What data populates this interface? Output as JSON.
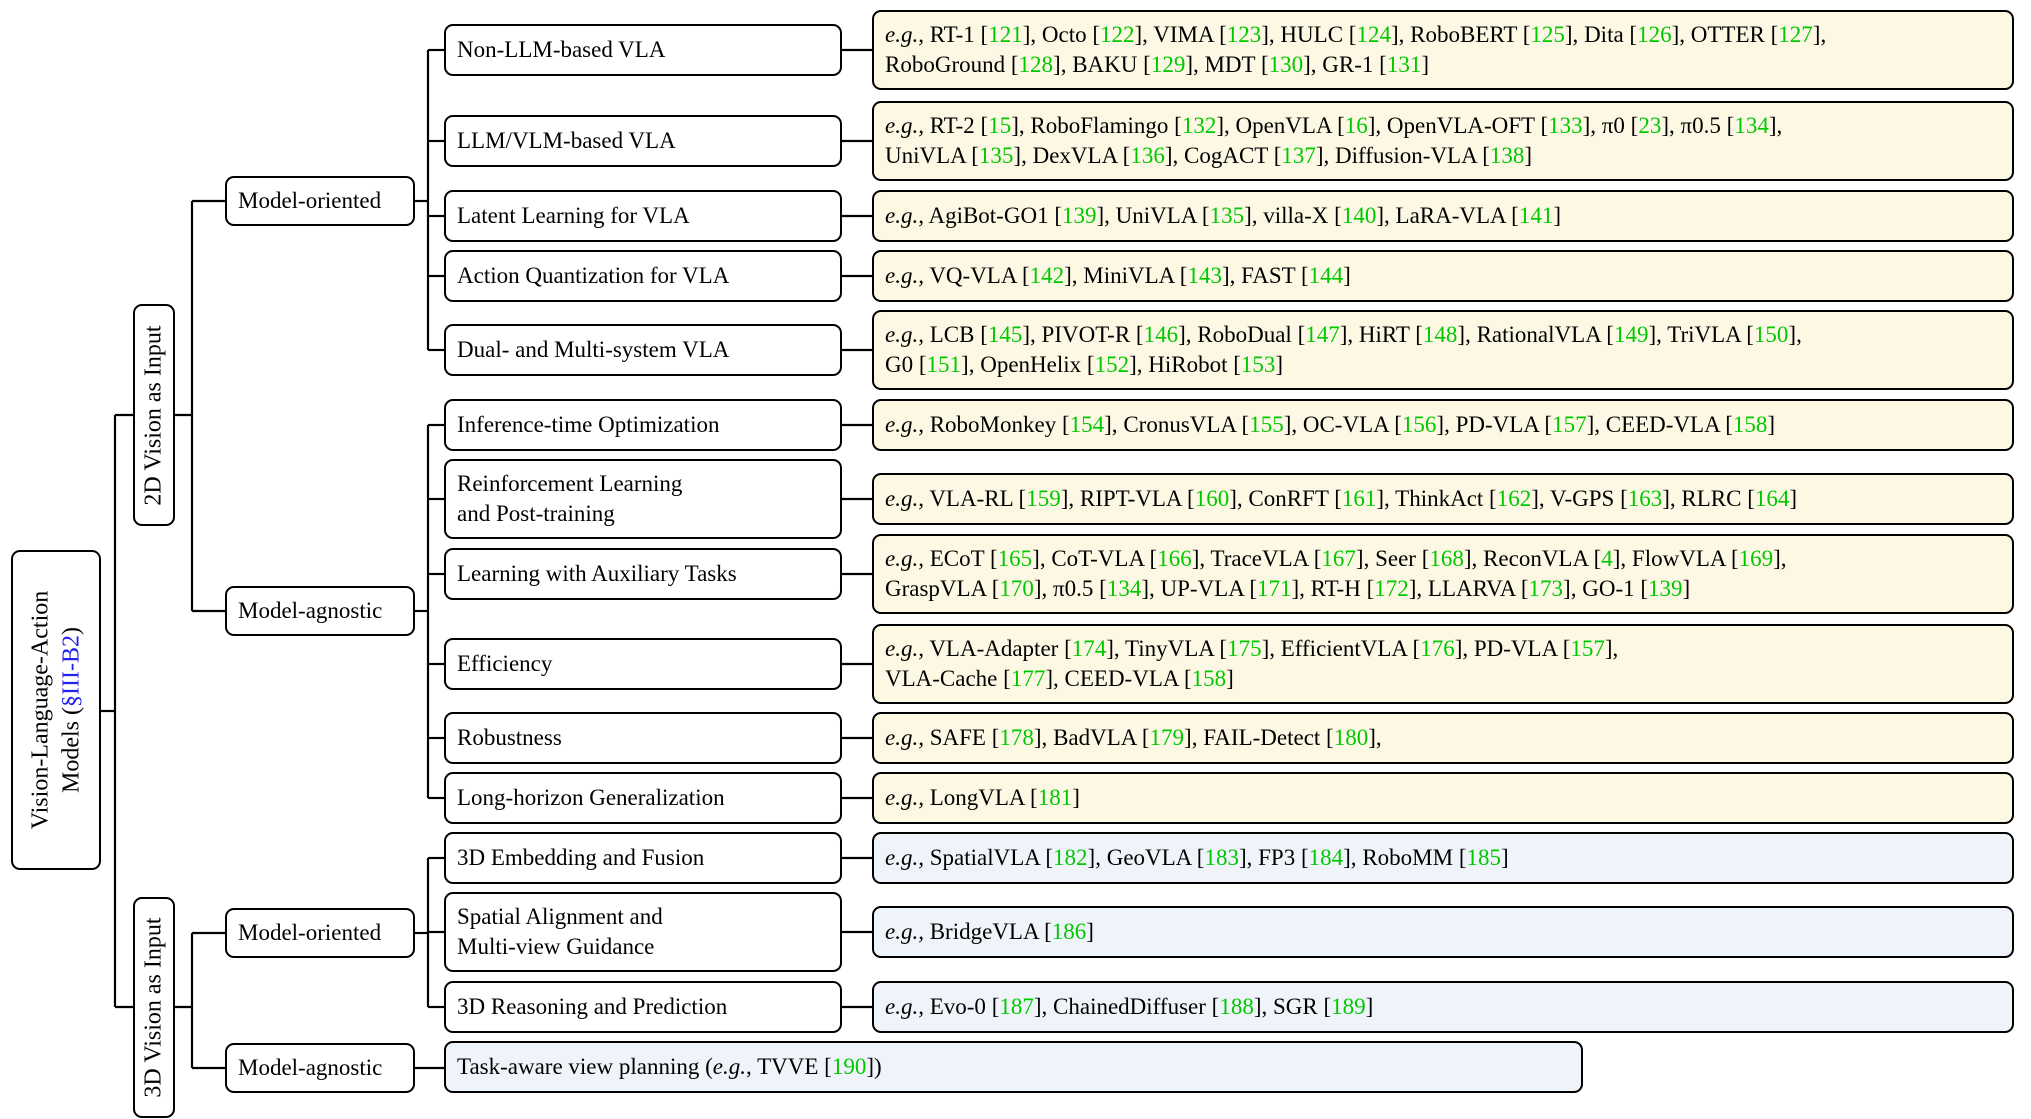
{
  "root": {
    "line1": "Vision-Language-Action",
    "line2_prefix": "Models (",
    "section_ref": "§III-B2",
    "line2_suffix": ")"
  },
  "branches": [
    {
      "label": "2D Vision as Input"
    },
    {
      "label": "3D Vision as Input"
    }
  ],
  "groups": [
    {
      "label": "Model-oriented"
    },
    {
      "label": "Model-agnostic"
    },
    {
      "label": "Model-oriented"
    },
    {
      "label": "Model-agnostic"
    }
  ],
  "eg_prefix": "e.g.,",
  "categories": [
    {
      "label": "Non-LLM-based VLA",
      "examples": [
        {
          "name": "RT-1",
          "cite": "121"
        },
        {
          "name": "Octo",
          "cite": "122"
        },
        {
          "name": "VIMA",
          "cite": "123"
        },
        {
          "name": "HULC",
          "cite": "124"
        },
        {
          "name": "RoboBERT",
          "cite": "125"
        },
        {
          "name": "Dita",
          "cite": "126"
        },
        {
          "name": "OTTER",
          "cite": "127"
        },
        {
          "name": "RoboGround",
          "cite": "128"
        },
        {
          "name": "BAKU",
          "cite": "129"
        },
        {
          "name": "MDT",
          "cite": "130"
        },
        {
          "name": "GR-1",
          "cite": "131"
        }
      ]
    },
    {
      "label": "LLM/VLM-based VLA",
      "examples": [
        {
          "name": "RT-2",
          "cite": "15"
        },
        {
          "name": "RoboFlamingo",
          "cite": "132"
        },
        {
          "name": "OpenVLA",
          "cite": "16"
        },
        {
          "name": "OpenVLA-OFT",
          "cite": "133"
        },
        {
          "name": "π0",
          "cite": "23"
        },
        {
          "name": "π0.5",
          "cite": "134"
        },
        {
          "name": "UniVLA",
          "cite": "135"
        },
        {
          "name": "DexVLA",
          "cite": "136"
        },
        {
          "name": "CogACT",
          "cite": "137"
        },
        {
          "name": "Diffusion-VLA",
          "cite": "138"
        }
      ]
    },
    {
      "label": "Latent Learning for VLA",
      "examples": [
        {
          "name": "AgiBot-GO1",
          "cite": "139"
        },
        {
          "name": "UniVLA",
          "cite": "135"
        },
        {
          "name": "villa-X",
          "cite": "140"
        },
        {
          "name": "LaRA-VLA",
          "cite": "141"
        }
      ]
    },
    {
      "label": "Action Quantization for VLA",
      "examples": [
        {
          "name": "VQ-VLA",
          "cite": "142"
        },
        {
          "name": "MiniVLA",
          "cite": "143"
        },
        {
          "name": "FAST",
          "cite": "144"
        }
      ]
    },
    {
      "label": "Dual- and Multi-system VLA",
      "examples": [
        {
          "name": "LCB",
          "cite": "145"
        },
        {
          "name": "PIVOT-R",
          "cite": "146"
        },
        {
          "name": "RoboDual",
          "cite": "147"
        },
        {
          "name": "HiRT",
          "cite": "148"
        },
        {
          "name": "RationalVLA",
          "cite": "149"
        },
        {
          "name": "TriVLA",
          "cite": "150"
        },
        {
          "name": "G0",
          "cite": "151"
        },
        {
          "name": "OpenHelix",
          "cite": "152"
        },
        {
          "name": "HiRobot",
          "cite": "153"
        }
      ]
    },
    {
      "label": "Inference-time Optimization",
      "examples": [
        {
          "name": "RoboMonkey",
          "cite": "154"
        },
        {
          "name": "CronusVLA",
          "cite": "155"
        },
        {
          "name": "OC-VLA",
          "cite": "156"
        },
        {
          "name": "PD-VLA",
          "cite": "157"
        },
        {
          "name": "CEED-VLA",
          "cite": "158"
        }
      ]
    },
    {
      "label": "Reinforcement Learning and Post-training",
      "line1": "Reinforcement Learning",
      "line2": "and Post-training",
      "examples": [
        {
          "name": "VLA-RL",
          "cite": "159"
        },
        {
          "name": "RIPT-VLA",
          "cite": "160"
        },
        {
          "name": "ConRFT",
          "cite": "161"
        },
        {
          "name": "ThinkAct",
          "cite": "162"
        },
        {
          "name": "V-GPS",
          "cite": "163"
        },
        {
          "name": "RLRC",
          "cite": "164"
        }
      ]
    },
    {
      "label": "Learning with Auxiliary Tasks",
      "examples": [
        {
          "name": "ECoT",
          "cite": "165"
        },
        {
          "name": "CoT-VLA",
          "cite": "166"
        },
        {
          "name": "TraceVLA",
          "cite": "167"
        },
        {
          "name": "Seer",
          "cite": "168"
        },
        {
          "name": "ReconVLA",
          "cite": "4"
        },
        {
          "name": "FlowVLA",
          "cite": "169"
        },
        {
          "name": "GraspVLA",
          "cite": "170"
        },
        {
          "name": "π0.5",
          "cite": "134"
        },
        {
          "name": "UP-VLA",
          "cite": "171"
        },
        {
          "name": "RT-H",
          "cite": "172"
        },
        {
          "name": "LLARVA",
          "cite": "173"
        },
        {
          "name": "GO-1",
          "cite": "139"
        }
      ]
    },
    {
      "label": "Efficiency",
      "examples": [
        {
          "name": "VLA-Adapter",
          "cite": "174"
        },
        {
          "name": "TinyVLA",
          "cite": "175"
        },
        {
          "name": "EfficientVLA",
          "cite": "176"
        },
        {
          "name": "PD-VLA",
          "cite": "157"
        },
        {
          "name": "VLA-Cache",
          "cite": "177"
        },
        {
          "name": "CEED-VLA",
          "cite": "158"
        }
      ]
    },
    {
      "label": "Robustness",
      "trailing_comma": true,
      "examples": [
        {
          "name": "SAFE",
          "cite": "178"
        },
        {
          "name": "BadVLA",
          "cite": "179"
        },
        {
          "name": "FAIL-Detect",
          "cite": "180"
        }
      ]
    },
    {
      "label": "Long-horizon Generalization",
      "examples": [
        {
          "name": "LongVLA",
          "cite": "181"
        }
      ]
    },
    {
      "label": "3D Embedding and Fusion",
      "examples": [
        {
          "name": "SpatialVLA",
          "cite": "182"
        },
        {
          "name": "GeoVLA",
          "cite": "183"
        },
        {
          "name": "FP3",
          "cite": "184"
        },
        {
          "name": "RoboMM",
          "cite": "185"
        }
      ]
    },
    {
      "label": "Spatial Alignment and Multi-view Guidance",
      "line1": "Spatial Alignment and",
      "line2": "Multi-view Guidance",
      "examples": [
        {
          "name": "BridgeVLA",
          "cite": "186"
        }
      ]
    },
    {
      "label": "3D Reasoning and Prediction",
      "examples": [
        {
          "name": "Evo-0",
          "cite": "187"
        },
        {
          "name": "ChainedDiffuser",
          "cite": "188"
        },
        {
          "name": "SGR",
          "cite": "189"
        }
      ]
    }
  ],
  "task_aware": {
    "prefix": "Task-aware view planning (",
    "eg": "e.g.,",
    "name": "TVVE",
    "cite": "190",
    "suffix": ")"
  },
  "colors": {
    "yellow_fill": "#fdf8e3",
    "blue_fill": "#eef4f9",
    "cite": "#00c800",
    "section_ref": "#2222ee",
    "border": "#000000"
  }
}
